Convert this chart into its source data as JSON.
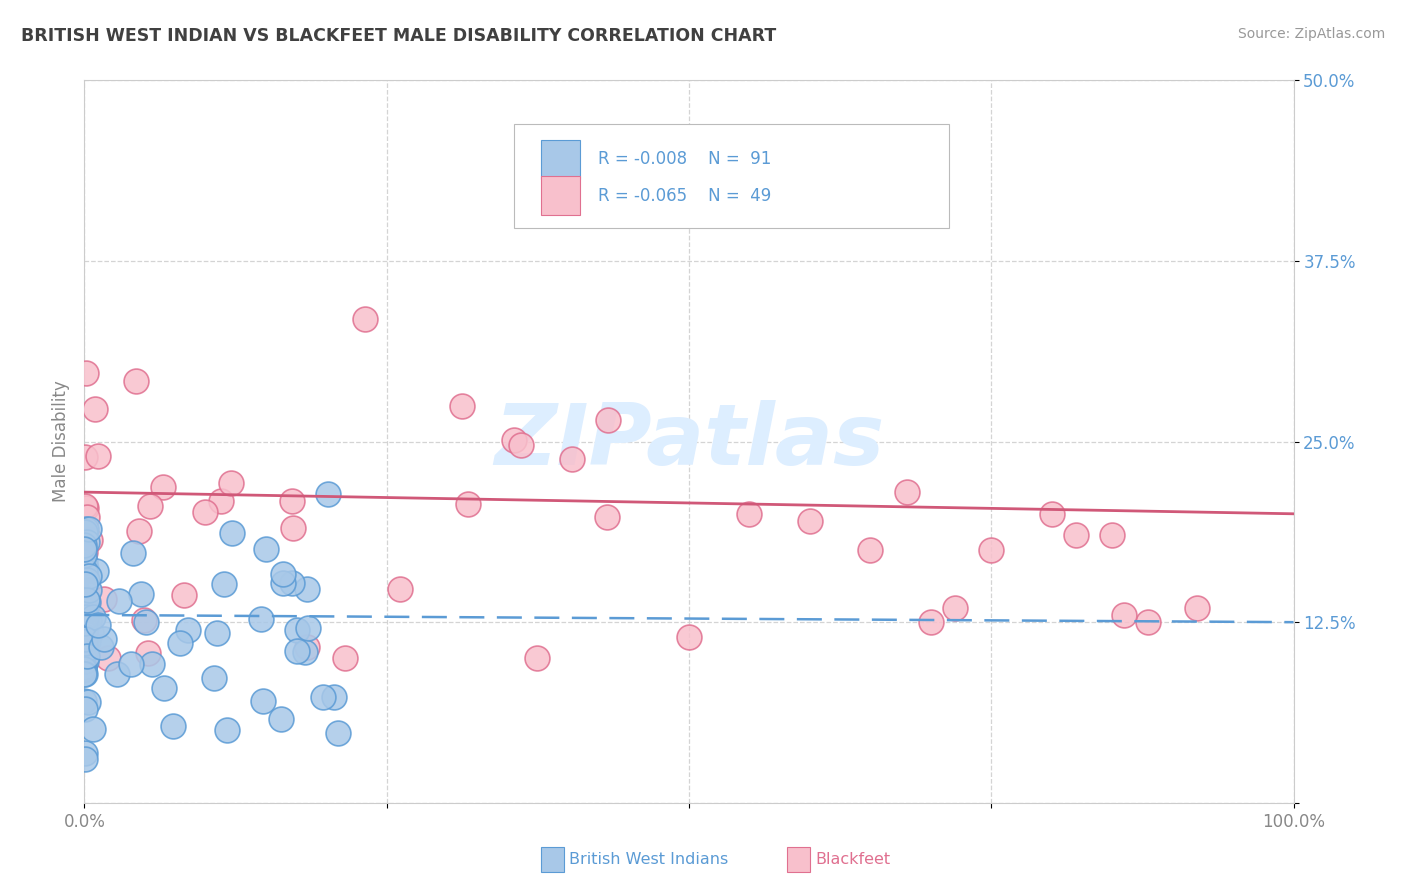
{
  "title": "BRITISH WEST INDIAN VS BLACKFEET MALE DISABILITY CORRELATION CHART",
  "source_text": "Source: ZipAtlas.com",
  "ylabel": "Male Disability",
  "xlim": [
    0.0,
    1.0
  ],
  "ylim": [
    0.0,
    0.5
  ],
  "xtick_vals": [
    0.0,
    0.25,
    0.5,
    0.75,
    1.0
  ],
  "xtick_labels": [
    "0.0%",
    "",
    "",
    "",
    "100.0%"
  ],
  "ytick_vals": [
    0.0,
    0.125,
    0.25,
    0.375,
    0.5
  ],
  "ytick_labels": [
    "",
    "12.5%",
    "25.0%",
    "37.5%",
    "50.0%"
  ],
  "color_blue_fill": "#a8c8e8",
  "color_blue_edge": "#5b9bd5",
  "color_pink_fill": "#f8c0cc",
  "color_pink_edge": "#e07090",
  "color_line_blue": "#5b9bd5",
  "color_line_pink": "#d05878",
  "color_title": "#404040",
  "color_source": "#999999",
  "color_ylabel": "#888888",
  "color_ytick": "#5b9bd5",
  "color_xtick": "#888888",
  "color_grid": "#d0d0d0",
  "color_legend_text": "#5b9bd5",
  "watermark_color": "#ddeeff",
  "background_color": "#ffffff",
  "bwi_line_y_start": 0.13,
  "bwi_line_y_end": 0.125,
  "bk_line_y_start": 0.215,
  "bk_line_y_end": 0.2
}
